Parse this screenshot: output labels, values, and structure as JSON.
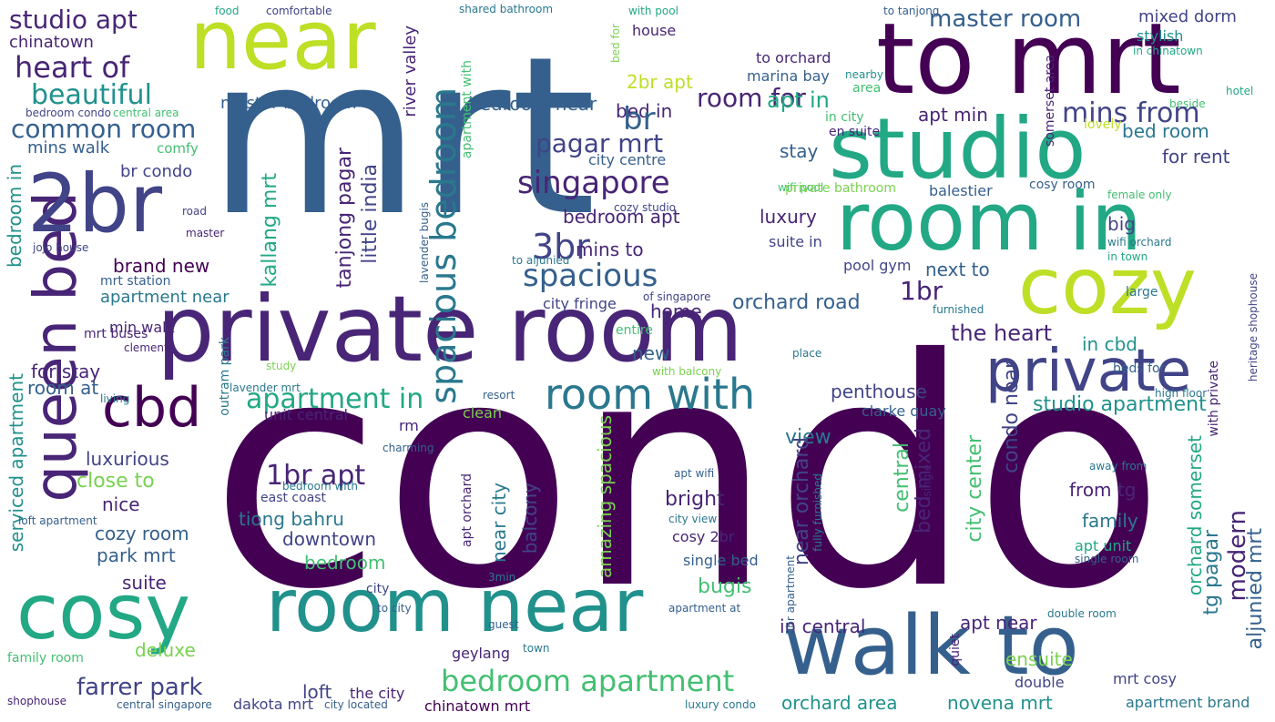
{
  "palette": [
    "#440154",
    "#482576",
    "#414487",
    "#35608d",
    "#2a788e",
    "#21918c",
    "#22a884",
    "#43bf71",
    "#7ad151",
    "#bddf26"
  ],
  "words": [
    "condo",
    "mrt",
    "private room",
    "room in",
    "to mrt",
    "near",
    "studio",
    "cozy",
    "cosy",
    "walk to",
    "room near",
    "queen bed",
    "cbd",
    "private",
    "2br",
    "room with",
    "bedroom apartment",
    "studio apt",
    "chinatown",
    "heart of",
    "beautiful",
    "common room",
    "mins walk",
    "comfy",
    "br condo",
    "brand new",
    "mrt station",
    "apartment near",
    "bedroom in",
    "master bedroom",
    "bedroom near",
    "bed in",
    "2br apt",
    "room for",
    "master room",
    "mixed dorm",
    "stylish",
    "in chinatown",
    "hotel",
    "beside",
    "spacious bedroom",
    "singapore",
    "pagar mrt",
    "br",
    "bedroom apt",
    "3br",
    "mins to",
    "spacious",
    "kallang mrt",
    "tanjong pagar",
    "little india",
    "apt in",
    "apt min",
    "mins from",
    "bed room",
    "for rent",
    "en suite",
    "stay",
    "city centre",
    "luxury",
    "balestier",
    "cosy room",
    "big",
    "suite in",
    "pool gym",
    "next to",
    "1br",
    "orchard road",
    "home",
    "city fringe",
    "the heart",
    "in cbd",
    "new",
    "penthouse",
    "studio apartment",
    "apartment in",
    "for stay",
    "room at",
    "serviced apartment",
    "luxurious",
    "close to",
    "nice",
    "1br apt",
    "tiong bahru",
    "downtown",
    "cozy room",
    "park mrt",
    "suite",
    "bedroom",
    "bright",
    "view",
    "near orchard",
    "central",
    "bed mixed",
    "city center",
    "condo near",
    "from tg",
    "family",
    "modern",
    "tg pagar",
    "aljunied mrt",
    "orchard somerset",
    "amazing spacious",
    "near city",
    "balcony",
    "bugis",
    "in central",
    "apt near",
    "ensuite",
    "orchard area",
    "novena mrt",
    "farrer park",
    "deluxe",
    "loft",
    "the city",
    "dakota mrt",
    "chinatown mrt",
    "mrt cosy",
    "apartment brand",
    "family room",
    "shophouse",
    "central singapore",
    "city located",
    "luxury condo",
    "double room",
    "shared bathroom",
    "with pool",
    "food",
    "comfortable",
    "to tanjong",
    "bed for",
    "house",
    "to orchard",
    "marina bay",
    "nearby",
    "area",
    "river valley",
    "apartment with",
    "in city",
    "somerset area",
    "wifi pool",
    "private bathroom",
    "female only",
    "lovely",
    "cozy studio",
    "wifi orchard",
    "in town",
    "lavender bugis",
    "to aljunied",
    "of singapore",
    "large",
    "furnished",
    "heritage shophouse",
    "with private",
    "entire",
    "place",
    "with balcony",
    "beds for",
    "high floor",
    "clarke quay",
    "resort",
    "clean",
    "unit central",
    "rm",
    "east coast",
    "loft apartment",
    "bedroom with",
    "charming",
    "apt orchard",
    "apt wifi",
    "fully furnished",
    "single",
    "away from",
    "city view",
    "cosy 2br",
    "single bed",
    "apt unit",
    "single room",
    "2br apartment",
    "apartment at",
    "to city",
    "city",
    "guest",
    "town",
    "geylang",
    "double",
    "quiet",
    "3min",
    "min walk",
    "mrt buses",
    "clementi",
    "outram park",
    "lavender mrt",
    "living",
    "study",
    "master",
    "road",
    "jojo house",
    "bedroom condo",
    "central area"
  ]
}
